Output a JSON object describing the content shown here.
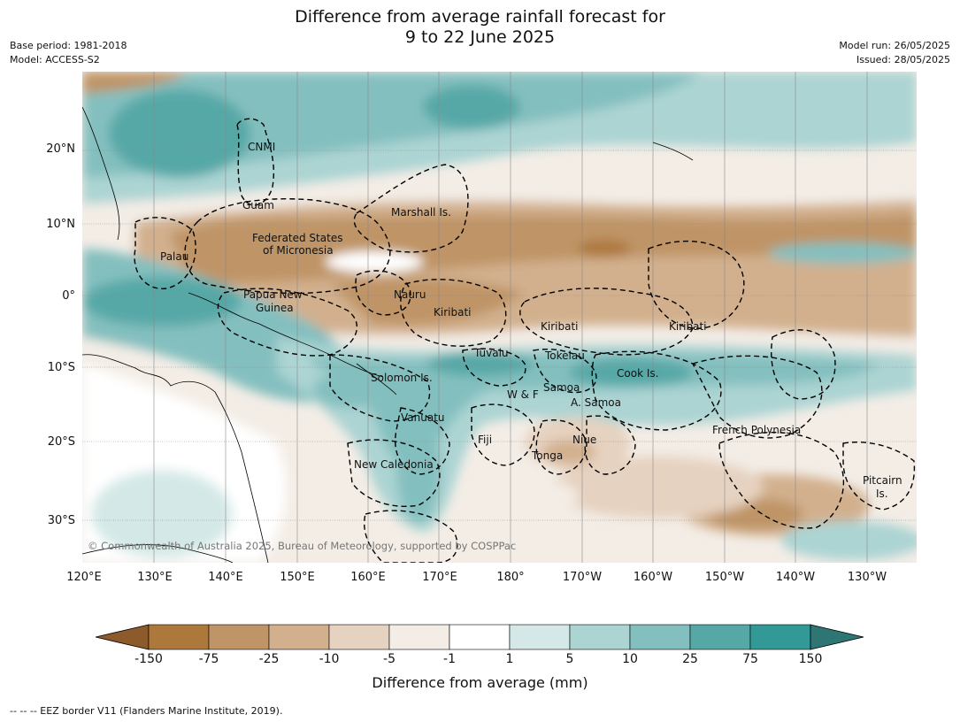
{
  "header": {
    "title_line1": "Difference from average rainfall forecast for",
    "title_line2": "9 to 22 June 2025",
    "base_period": "Base period: 1981-2018",
    "model": "Model: ACCESS-S2",
    "model_run": "Model run: 26/05/2025",
    "issued": "Issued: 28/05/2025"
  },
  "axes": {
    "lat_labels": [
      "20°N",
      "10°N",
      "0°",
      "10°S",
      "20°S",
      "30°S"
    ],
    "lon_labels": [
      "120°E",
      "130°E",
      "140°E",
      "150°E",
      "160°E",
      "170°E",
      "180°",
      "170°W",
      "160°W",
      "150°W",
      "140°W",
      "130°W"
    ]
  },
  "places": [
    {
      "name": "CNMI"
    },
    {
      "name": "Guam"
    },
    {
      "name": "Marshall Is."
    },
    {
      "name": "Federated States"
    },
    {
      "name": "of Micronesia"
    },
    {
      "name": "Palau"
    },
    {
      "name": "Papua New"
    },
    {
      "name": "Guinea"
    },
    {
      "name": "Nauru"
    },
    {
      "name": "Kiribati"
    },
    {
      "name": "Kiribati"
    },
    {
      "name": "Kiribati"
    },
    {
      "name": "Tuvalu"
    },
    {
      "name": "Tokelau"
    },
    {
      "name": "Cook Is."
    },
    {
      "name": "Solomon Is."
    },
    {
      "name": "W & F"
    },
    {
      "name": "Samoa"
    },
    {
      "name": "A. Samoa"
    },
    {
      "name": "Vanuatu"
    },
    {
      "name": "Fiji"
    },
    {
      "name": "Niue"
    },
    {
      "name": "Tonga"
    },
    {
      "name": "French Polynesia"
    },
    {
      "name": "New Caledonia"
    },
    {
      "name": "Pitcairn"
    },
    {
      "name": "Is."
    }
  ],
  "copyright": "© Commonwealth of Australia 2025, Bureau of Meteorology, supported by COSPPac",
  "legend": {
    "title": "Difference from average (mm)",
    "tick_labels": [
      "-150",
      "-75",
      "-25",
      "-10",
      "-5",
      "-1",
      "1",
      "5",
      "10",
      "25",
      "75",
      "150"
    ],
    "colors": [
      "#8c5a2b",
      "#ad783c",
      "#bf9466",
      "#d2b08e",
      "#e6d2c0",
      "#f3ede6",
      "#ffffff",
      "#d4e9e7",
      "#acd4d3",
      "#84bfbf",
      "#56a8a7",
      "#339997",
      "#2d7673"
    ]
  },
  "footnote": "-- -- -- EEZ border V11 (Flanders Marine Institute, 2019)."
}
